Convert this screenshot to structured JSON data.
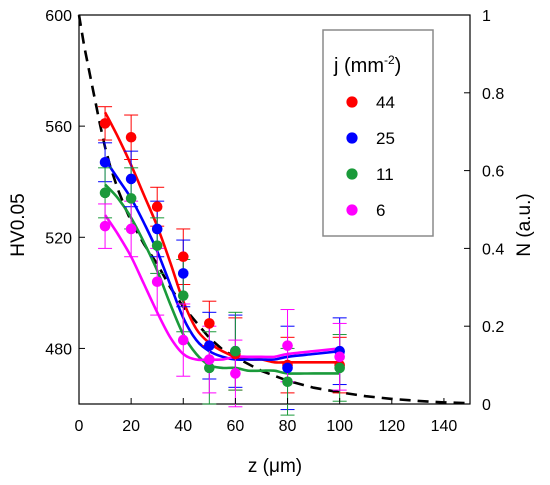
{
  "chart_data": {
    "type": "scatter",
    "x_axis": {
      "label_main": "z (",
      "label_mu": "μ",
      "label_unit": "m)",
      "ticks": [
        0,
        20,
        40,
        60,
        80,
        100,
        120,
        140
      ],
      "tick_labels": [
        "0",
        "20",
        "40",
        "60",
        "80",
        "100",
        "120",
        "140"
      ],
      "range": [
        0,
        150
      ]
    },
    "y_axis_left": {
      "label": "HV0.05",
      "ticks": [
        480,
        520,
        560,
        600
      ],
      "tick_labels": [
        "480",
        "520",
        "560",
        "600"
      ],
      "range": [
        460,
        600
      ]
    },
    "y_axis_right": {
      "label": "N (a.u.)",
      "ticks": [
        0,
        0.2,
        0.4,
        0.6,
        0.8,
        1
      ],
      "tick_labels": [
        "0",
        "0.2",
        "0.4",
        "0.6",
        "0.8",
        "1"
      ],
      "range": [
        0,
        1
      ]
    },
    "legend": {
      "title_main": "j (mm",
      "title_sup": "-2",
      "title_end": ")",
      "placement": "top-right"
    },
    "series": [
      {
        "name": "44",
        "color": "#ff0000",
        "x": [
          10,
          20,
          30,
          40,
          50,
          60,
          80,
          100
        ],
        "y": [
          561,
          556,
          531,
          513,
          489,
          478,
          474,
          474
        ],
        "err": [
          6,
          8,
          7,
          10,
          8,
          13,
          10,
          10
        ],
        "fit_x": [
          10,
          15,
          20,
          25,
          30,
          35,
          40,
          45,
          50,
          55,
          60,
          65,
          70,
          75,
          80,
          90,
          100
        ],
        "fit_y": [
          565,
          556,
          546,
          535,
          524,
          511,
          497,
          487,
          482,
          479,
          477,
          476,
          476,
          475,
          475,
          475,
          475
        ]
      },
      {
        "name": "25",
        "color": "#0000ff",
        "x": [
          10,
          20,
          30,
          40,
          50,
          60,
          80,
          100
        ],
        "y": [
          547,
          541,
          523,
          507,
          481,
          479,
          473,
          479
        ],
        "err": [
          7,
          10,
          10,
          12,
          12,
          13,
          15,
          12
        ],
        "fit_x": [
          10,
          15,
          20,
          25,
          30,
          35,
          40,
          45,
          50,
          55,
          60,
          65,
          70,
          75,
          80,
          90,
          100
        ],
        "fit_y": [
          548,
          541,
          534,
          525,
          515,
          503,
          491,
          483,
          479,
          477,
          476,
          476,
          476,
          476,
          477,
          478,
          479
        ]
      },
      {
        "name": "11",
        "color": "#1a9a3a",
        "x": [
          10,
          20,
          30,
          40,
          50,
          60,
          80,
          100
        ],
        "y": [
          536,
          534,
          517,
          499,
          473,
          479,
          468,
          473
        ],
        "err": [
          9,
          11,
          10,
          13,
          13,
          14,
          12,
          12
        ],
        "fit_x": [
          10,
          15,
          20,
          25,
          30,
          35,
          40,
          45,
          50,
          55,
          60,
          65,
          70,
          75,
          80,
          90,
          100
        ],
        "fit_y": [
          539,
          534,
          527,
          518,
          508,
          496,
          485,
          478,
          474,
          473,
          473,
          472,
          472,
          472,
          471,
          471,
          471
        ]
      },
      {
        "name": "6",
        "color": "#ff00ff",
        "x": [
          10,
          20,
          30,
          40,
          50,
          60,
          80,
          100
        ],
        "y": [
          524,
          523,
          504,
          483,
          476,
          471,
          481,
          477
        ],
        "err": [
          8,
          10,
          12,
          13,
          12,
          12,
          13,
          12
        ],
        "fit_x": [
          10,
          15,
          20,
          25,
          30,
          35,
          40,
          45,
          50,
          55,
          60,
          65,
          70,
          75,
          80,
          90,
          100
        ],
        "fit_y": [
          528,
          521,
          513,
          503,
          493,
          484,
          478,
          476,
          476,
          476,
          477,
          477,
          477,
          477,
          478,
          479,
          480
        ]
      }
    ],
    "dashed_curve": {
      "axis": "right",
      "x": [
        0,
        2,
        5,
        8,
        10,
        12,
        15,
        18,
        20,
        25,
        30,
        35,
        40,
        45,
        50,
        55,
        60,
        70,
        80,
        90,
        100,
        110,
        120,
        130,
        140,
        150
      ],
      "y": [
        1.0,
        0.92,
        0.82,
        0.72,
        0.66,
        0.61,
        0.55,
        0.5,
        0.47,
        0.41,
        0.36,
        0.3,
        0.25,
        0.21,
        0.17,
        0.14,
        0.12,
        0.085,
        0.06,
        0.042,
        0.03,
        0.02,
        0.013,
        0.008,
        0.004,
        0.002
      ]
    }
  }
}
